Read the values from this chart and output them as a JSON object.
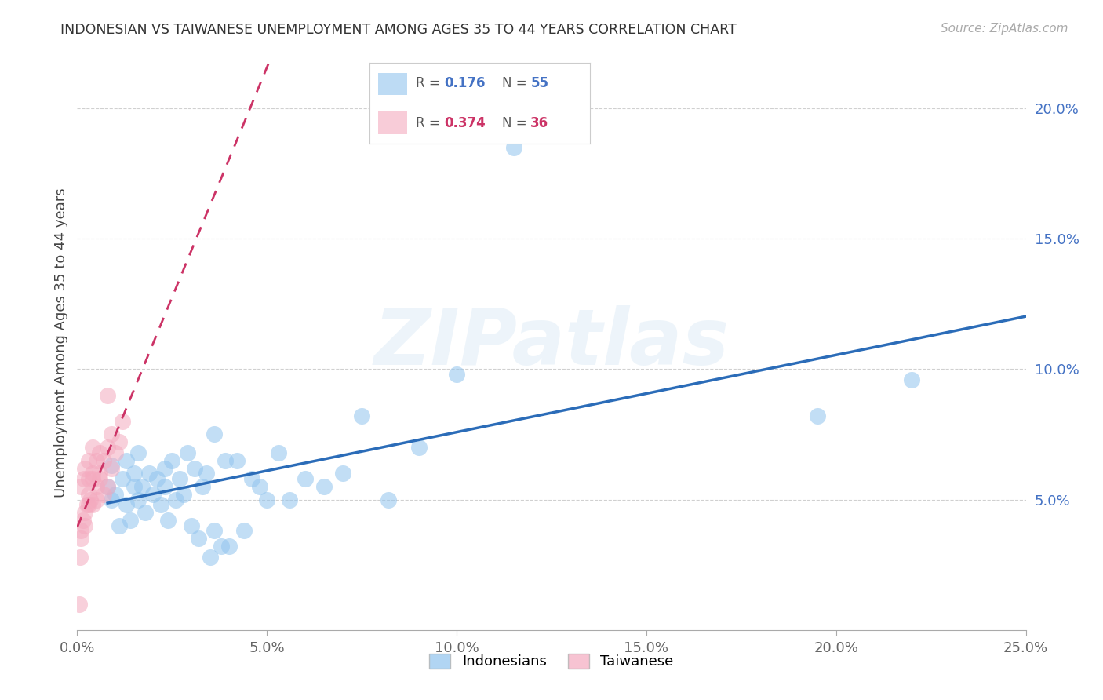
{
  "title": "INDONESIAN VS TAIWANESE UNEMPLOYMENT AMONG AGES 35 TO 44 YEARS CORRELATION CHART",
  "source": "Source: ZipAtlas.com",
  "ylabel": "Unemployment Among Ages 35 to 44 years",
  "xlim": [
    0.0,
    0.25
  ],
  "ylim": [
    0.0,
    0.22
  ],
  "xticks": [
    0.0,
    0.05,
    0.1,
    0.15,
    0.2,
    0.25
  ],
  "yticks": [
    0.05,
    0.1,
    0.15,
    0.2
  ],
  "xticklabels": [
    "0.0%",
    "5.0%",
    "10.0%",
    "15.0%",
    "20.0%",
    "25.0%"
  ],
  "yticklabels": [
    "5.0%",
    "10.0%",
    "15.0%",
    "20.0%"
  ],
  "indonesian_color": "#91C4EE",
  "taiwanese_color": "#F4AABF",
  "indonesian_line_color": "#2B6CB8",
  "taiwanese_line_color": "#CC3366",
  "legend_R_indonesian": "0.176",
  "legend_N_indonesian": "55",
  "legend_R_taiwanese": "0.374",
  "legend_N_taiwanese": "36",
  "watermark": "ZIPatlas",
  "legend_color_indonesian": "#4472C4",
  "legend_color_taiwanese": "#CC3366",
  "indo_x": [
    0.008,
    0.009,
    0.009,
    0.01,
    0.011,
    0.012,
    0.013,
    0.013,
    0.014,
    0.015,
    0.015,
    0.016,
    0.016,
    0.017,
    0.018,
    0.019,
    0.02,
    0.021,
    0.022,
    0.023,
    0.023,
    0.024,
    0.025,
    0.026,
    0.027,
    0.028,
    0.029,
    0.03,
    0.031,
    0.032,
    0.033,
    0.034,
    0.035,
    0.036,
    0.038,
    0.039,
    0.04,
    0.042,
    0.044,
    0.046,
    0.048,
    0.05,
    0.053,
    0.056,
    0.06,
    0.065,
    0.07,
    0.075,
    0.082,
    0.09,
    0.1,
    0.115,
    0.036,
    0.195,
    0.22
  ],
  "indo_y": [
    0.055,
    0.05,
    0.063,
    0.052,
    0.04,
    0.058,
    0.048,
    0.065,
    0.042,
    0.06,
    0.055,
    0.05,
    0.068,
    0.055,
    0.045,
    0.06,
    0.052,
    0.058,
    0.048,
    0.062,
    0.055,
    0.042,
    0.065,
    0.05,
    0.058,
    0.052,
    0.068,
    0.04,
    0.062,
    0.035,
    0.055,
    0.06,
    0.028,
    0.038,
    0.032,
    0.065,
    0.032,
    0.065,
    0.038,
    0.058,
    0.055,
    0.05,
    0.068,
    0.05,
    0.058,
    0.055,
    0.06,
    0.082,
    0.05,
    0.07,
    0.098,
    0.185,
    0.075,
    0.082,
    0.096
  ],
  "tai_x": [
    0.0005,
    0.0008,
    0.001,
    0.001,
    0.0015,
    0.0018,
    0.002,
    0.002,
    0.0025,
    0.003,
    0.003,
    0.003,
    0.0035,
    0.004,
    0.004,
    0.004,
    0.005,
    0.005,
    0.005,
    0.006,
    0.006,
    0.007,
    0.007,
    0.008,
    0.008,
    0.009,
    0.009,
    0.01,
    0.011,
    0.012,
    0.001,
    0.002,
    0.003,
    0.004,
    0.006,
    0.008
  ],
  "tai_y": [
    0.01,
    0.028,
    0.038,
    0.055,
    0.042,
    0.058,
    0.045,
    0.062,
    0.048,
    0.052,
    0.058,
    0.065,
    0.05,
    0.048,
    0.06,
    0.07,
    0.055,
    0.065,
    0.05,
    0.058,
    0.068,
    0.052,
    0.065,
    0.055,
    0.07,
    0.062,
    0.075,
    0.068,
    0.072,
    0.08,
    0.035,
    0.04,
    0.048,
    0.058,
    0.06,
    0.09
  ]
}
